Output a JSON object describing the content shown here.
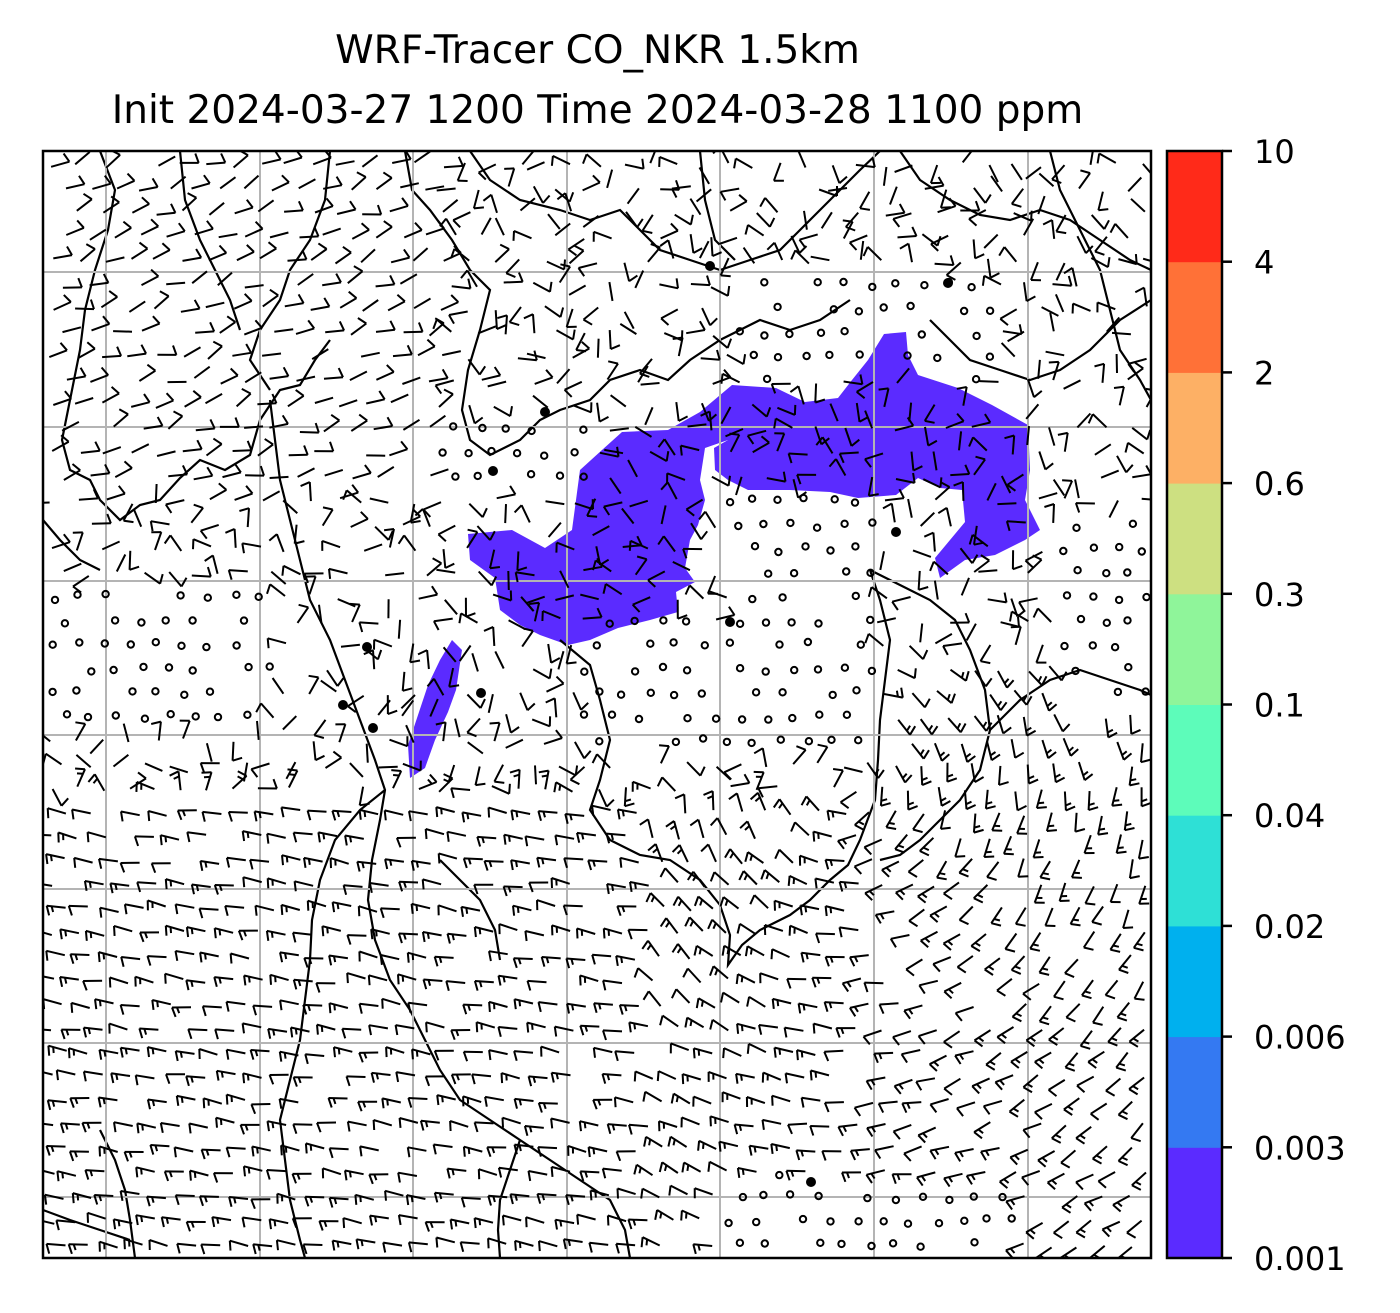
{
  "title": {
    "line1": "WRF-Tracer CO_NKR 1.5km",
    "line2": "Init 2024-03-27 1200 Time 2024-03-28 1100 ppm"
  },
  "colorbar": {
    "levels": [
      "0.001",
      "0.003",
      "0.006",
      "0.02",
      "0.04",
      "0.1",
      "0.3",
      "0.6",
      "2",
      "4",
      "10"
    ],
    "colors": [
      "#5b2bff",
      "#3479f2",
      "#00b0ee",
      "#2ee0d6",
      "#5dfcba",
      "#8ff59a",
      "#cde081",
      "#fdb065",
      "#ff7137",
      "#ff2a19"
    ]
  },
  "map": {
    "plume_color": "#5b2bff",
    "gridline_color": "#b4b4b4",
    "wind_barb_color": "#000000"
  }
}
